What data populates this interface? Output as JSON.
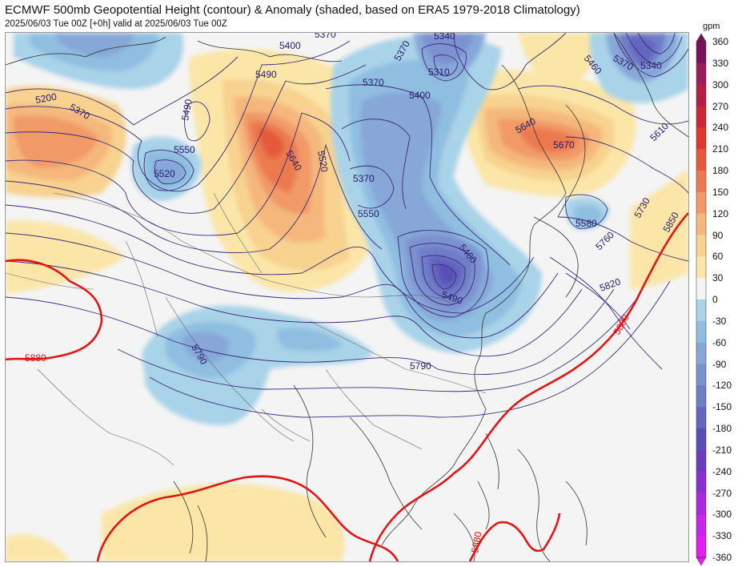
{
  "title": "ECMWF 500mb Geopotential Height (contour) & Anomaly (shaded, based on ERA5 1979-2018 Climatology)",
  "subtitle": "2025/06/03 Tue 00Z [+0h] valid at 2025/06/03 Tue 00Z",
  "colorbar": {
    "unit": "gpm",
    "levels": [
      360,
      330,
      300,
      270,
      240,
      210,
      180,
      150,
      120,
      90,
      60,
      30,
      0,
      -30,
      -60,
      -90,
      -120,
      -150,
      -180,
      -210,
      -240,
      -270,
      -300,
      -330,
      -360
    ],
    "colors": [
      "#7a1259",
      "#9a1e5b",
      "#b31f45",
      "#c82a34",
      "#dc3a2e",
      "#e55a3a",
      "#ec7a50",
      "#f19a67",
      "#f5b77c",
      "#f8d28f",
      "#fbe6a8",
      "#f4f4f4",
      "#f4f4f4",
      "#a9d3e8",
      "#8fbee0",
      "#86a7d8",
      "#7b92d0",
      "#707dc8",
      "#6466bf",
      "#5a4fb8",
      "#6a3cc0",
      "#8a2fd0",
      "#aa28de",
      "#c826e8",
      "#e020f0"
    ]
  },
  "contour_labels": {
    "c5400": "5400",
    "c5370a": "5370",
    "c5340": "5340",
    "c5370b": "5370",
    "c5310": "5310",
    "c5460a": "5460",
    "c5370c": "5370",
    "c5340b": "5340",
    "c5200": "5200",
    "c5370d": "5370",
    "c5490a": "5490",
    "c5490b": "5490",
    "c5370e": "5370",
    "c5400b": "5400",
    "c5640a": "5640",
    "c5670": "5670",
    "c5610": "5610",
    "c5550": "5550",
    "c5520": "5520",
    "c5520b": "5520",
    "c5640b": "5640",
    "c5370f": "5370",
    "c5550b": "5550",
    "c5580": "5580",
    "c5730": "5730",
    "c5850": "5850",
    "c5460b": "5460",
    "c5760": "5760",
    "c5490c": "5490",
    "c5820": "5820",
    "c5880a": "5880",
    "c5880b": "5880",
    "c5790a": "5790",
    "c5790b": "5790",
    "c5880c": "5880"
  }
}
